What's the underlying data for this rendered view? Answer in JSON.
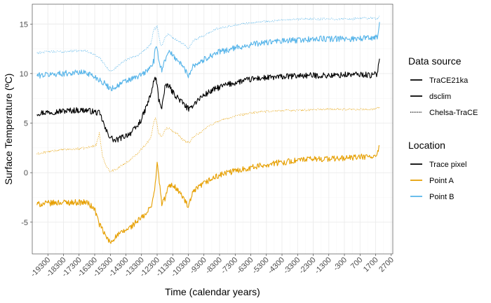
{
  "chart_data": {
    "type": "line",
    "xlabel": "Time (calendar years)",
    "ylabel": "Surface Temperature (ºC)",
    "xlim": [
      -20300,
      2800
    ],
    "ylim": [
      -8.2,
      17
    ],
    "x_ticks": [
      -19300,
      -18300,
      -17300,
      -16300,
      -15300,
      -14300,
      -13300,
      -12300,
      -11300,
      -10300,
      -9300,
      -8300,
      -7300,
      -6300,
      -5300,
      -4300,
      -3300,
      -2300,
      -1300,
      -300,
      700,
      1700,
      2700
    ],
    "x_tick_labels": [
      "-19300",
      "-18300",
      "-17300",
      "-16300",
      "-15300",
      "-14300",
      "-13300",
      "-12300",
      "-11300",
      "-10300",
      "-9300",
      "-8300",
      "-7300",
      "-6300",
      "-5300",
      "-4300",
      "-3300",
      "-2300",
      "-1300",
      "-300",
      "700",
      "1700",
      "2700"
    ],
    "y_ticks": [
      -5,
      0,
      5,
      10,
      15
    ],
    "y_tick_labels": [
      "-5",
      "0",
      "5",
      "10",
      "15"
    ],
    "grid": true,
    "legend": {
      "placement": "right",
      "groups": [
        {
          "title": "Data source",
          "entries": [
            {
              "label": "TraCE21ka",
              "linetype": "solid",
              "color": "#000000"
            },
            {
              "label": "dsclim",
              "linetype": "solid",
              "color": "#000000"
            },
            {
              "label": "Chelsa-TraCE",
              "linetype": "dotted",
              "color": "#000000"
            }
          ]
        },
        {
          "title": "Location",
          "entries": [
            {
              "label": "Trace pixel",
              "color": "#000000"
            },
            {
              "label": "Point A",
              "color": "#E69F00"
            },
            {
              "label": "Point B",
              "color": "#56B4E9"
            }
          ]
        }
      ]
    },
    "series": [
      {
        "name": "TraCE21ka · Trace pixel",
        "source": "TraCE21ka",
        "location": "Trace pixel",
        "color": "#000000",
        "linetype": "solid",
        "x": [
          -20000,
          -19300,
          -18500,
          -17500,
          -16800,
          -16000,
          -15800,
          -15600,
          -15300,
          -15000,
          -14500,
          -14000,
          -13600,
          -13300,
          -13000,
          -12700,
          -12500,
          -12400,
          -12300,
          -12200,
          -12000,
          -11800,
          -11600,
          -11300,
          -11000,
          -10700,
          -10400,
          -10200,
          -10000,
          -9500,
          -9000,
          -8500,
          -8000,
          -7000,
          -6000,
          -5000,
          -4000,
          -3000,
          -2000,
          -1000,
          0,
          1000,
          1500,
          1800,
          1950
        ],
        "y": [
          6.0,
          6.1,
          6.2,
          6.3,
          6.3,
          6.0,
          5.3,
          4.3,
          3.6,
          3.2,
          3.6,
          4.0,
          4.6,
          5.4,
          6.6,
          7.9,
          9.3,
          9.6,
          8.8,
          7.4,
          6.6,
          8.5,
          8.9,
          8.1,
          7.6,
          7.1,
          6.6,
          6.3,
          6.9,
          7.6,
          8.1,
          8.5,
          8.8,
          9.2,
          9.5,
          9.6,
          9.7,
          9.8,
          9.8,
          9.8,
          9.9,
          9.9,
          9.8,
          10.0,
          11.5
        ]
      },
      {
        "name": "Chelsa-TraCE · Trace pixel",
        "source": "Chelsa-TraCE",
        "location": "Trace pixel",
        "color": "#E69F00",
        "linetype": "dotted",
        "x": [
          -20000,
          -19300,
          -18500,
          -17500,
          -16800,
          -16200,
          -16000,
          -15800,
          -15600,
          -15300,
          -15000,
          -14500,
          -14000,
          -13600,
          -13300,
          -13000,
          -12700,
          -12500,
          -12400,
          -12300,
          -12200,
          -12000,
          -11800,
          -11600,
          -11300,
          -11000,
          -10700,
          -10400,
          -10200,
          -10000,
          -9500,
          -9000,
          -8500,
          -8000,
          -7000,
          -6000,
          -5000,
          -4000,
          -3000,
          -2000,
          -1000,
          0,
          1000,
          1500,
          1800,
          1950
        ],
        "y": [
          1.9,
          2.1,
          2.3,
          2.4,
          2.5,
          2.8,
          4.0,
          1.6,
          0.8,
          0.1,
          0.3,
          0.8,
          1.3,
          1.9,
          2.4,
          2.9,
          3.5,
          5.2,
          5.6,
          4.8,
          4.0,
          3.6,
          4.4,
          4.5,
          4.2,
          3.9,
          3.4,
          3.1,
          3.0,
          3.6,
          4.1,
          4.7,
          5.1,
          5.4,
          5.8,
          6.1,
          6.2,
          6.3,
          6.3,
          6.4,
          6.4,
          6.4,
          6.4,
          6.4,
          6.5,
          6.6
        ]
      },
      {
        "name": "dsclim · Point A",
        "source": "dsclim",
        "location": "Point A",
        "color": "#E69F00",
        "linetype": "solid",
        "x": [
          -20000,
          -19300,
          -18500,
          -17500,
          -16800,
          -16300,
          -16000,
          -15600,
          -15300,
          -15000,
          -14600,
          -14000,
          -13500,
          -13000,
          -12700,
          -12500,
          -12300,
          -12200,
          -12000,
          -11800,
          -11600,
          -11300,
          -11000,
          -10600,
          -10300,
          -10000,
          -9500,
          -9000,
          -8500,
          -8000,
          -7000,
          -6000,
          -5000,
          -4000,
          -3000,
          -2000,
          -1000,
          0,
          1000,
          1500,
          1800,
          1950
        ],
        "y": [
          -3.2,
          -3.1,
          -3.0,
          -3.0,
          -3.0,
          -3.7,
          -5.2,
          -6.4,
          -7.1,
          -6.5,
          -6.1,
          -5.5,
          -4.8,
          -4.2,
          -3.4,
          -2.2,
          0.9,
          -0.3,
          -3.2,
          -2.6,
          -1.5,
          -1.2,
          -1.7,
          -2.6,
          -3.5,
          -2.0,
          -1.3,
          -0.8,
          -0.4,
          -0.1,
          0.3,
          0.6,
          0.9,
          1.1,
          1.3,
          1.4,
          1.4,
          1.5,
          1.6,
          1.6,
          1.7,
          2.7
        ]
      },
      {
        "name": "dsclim · Point B",
        "source": "dsclim",
        "location": "Point B",
        "color": "#56B4E9",
        "linetype": "solid",
        "x": [
          -20000,
          -19300,
          -18500,
          -17500,
          -16800,
          -16000,
          -15600,
          -15300,
          -15000,
          -14500,
          -14000,
          -13500,
          -13000,
          -12700,
          -12500,
          -12400,
          -12300,
          -12100,
          -12000,
          -11800,
          -11600,
          -11300,
          -11000,
          -10600,
          -10300,
          -10000,
          -9500,
          -9000,
          -8500,
          -8000,
          -7000,
          -6000,
          -5000,
          -4000,
          -3000,
          -2000,
          -1000,
          0,
          1000,
          1500,
          1800,
          1950
        ],
        "y": [
          9.8,
          9.9,
          10.0,
          10.1,
          10.1,
          9.4,
          8.9,
          8.5,
          8.6,
          9.1,
          9.4,
          9.7,
          10.2,
          10.7,
          11.3,
          12.8,
          12.2,
          10.9,
          10.4,
          11.3,
          12.3,
          11.8,
          11.4,
          10.6,
          9.8,
          10.8,
          11.2,
          11.7,
          12.1,
          12.3,
          12.7,
          13.0,
          13.2,
          13.3,
          13.4,
          13.5,
          13.5,
          13.5,
          13.6,
          13.6,
          13.7,
          15.2
        ]
      },
      {
        "name": "Chelsa-TraCE · Point B",
        "source": "Chelsa-TraCE",
        "location": "Point B",
        "color": "#56B4E9",
        "linetype": "dotted",
        "x": [
          -20000,
          -19300,
          -18500,
          -17500,
          -16800,
          -16000,
          -15600,
          -15300,
          -15000,
          -14500,
          -14000,
          -13500,
          -13000,
          -12700,
          -12500,
          -12400,
          -12300,
          -12100,
          -12000,
          -11800,
          -11600,
          -11300,
          -11000,
          -10600,
          -10300,
          -10000,
          -9500,
          -9000,
          -8500,
          -8000,
          -7000,
          -6000,
          -5000,
          -4000,
          -3000,
          -2000,
          -1000,
          0,
          1000,
          1500,
          1800,
          1950
        ],
        "y": [
          12.1,
          12.2,
          12.2,
          12.3,
          12.3,
          11.6,
          10.8,
          10.2,
          10.5,
          11.2,
          11.6,
          11.9,
          12.5,
          13.0,
          14.6,
          14.5,
          14.9,
          13.0,
          12.8,
          13.6,
          14.0,
          13.6,
          13.3,
          13.0,
          12.5,
          13.3,
          13.7,
          14.1,
          14.5,
          14.7,
          15.0,
          15.2,
          15.3,
          15.4,
          15.5,
          15.5,
          15.5,
          15.5,
          15.6,
          15.6,
          15.5,
          15.8
        ]
      }
    ]
  }
}
